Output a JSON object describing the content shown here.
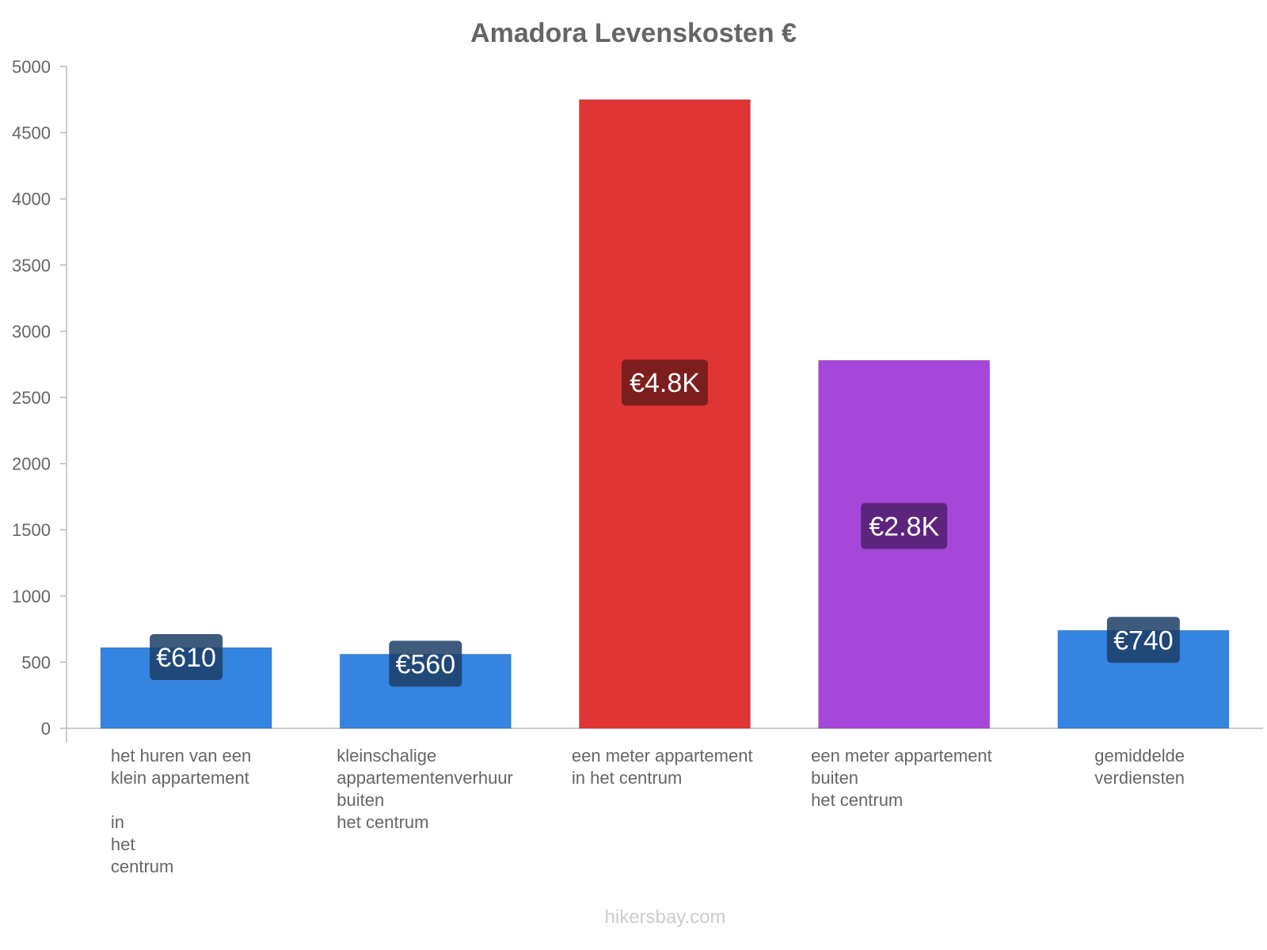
{
  "chart_data": {
    "type": "bar",
    "title": "Amadora Levenskosten €",
    "xlabel": "",
    "ylabel": "",
    "ylim": [
      0,
      5000
    ],
    "yticks": [
      0,
      500,
      1000,
      1500,
      2000,
      2500,
      3000,
      3500,
      4000,
      4500,
      5000
    ],
    "grid": false,
    "legend": "none",
    "categories": [
      [
        "het huren van een",
        "klein appartement",
        "",
        "in",
        "het",
        "centrum"
      ],
      [
        "kleinschalige",
        "appartementenverhuur",
        "buiten",
        "het centrum"
      ],
      [
        "een meter appartement",
        "in het centrum"
      ],
      [
        "een meter appartement",
        "buiten",
        "het centrum"
      ],
      [
        "gemiddelde",
        "verdiensten"
      ]
    ],
    "values": [
      610,
      560,
      4750,
      2780,
      740
    ],
    "value_labels": [
      "€610",
      "€560",
      "€4.8K",
      "€2.8K",
      "€740"
    ],
    "bar_colors": [
      "#3584e0",
      "#3584e0",
      "#e03535",
      "#a647d9",
      "#3584e0"
    ],
    "label_bg_colors": [
      "#1c3d66",
      "#1c3d66",
      "#6b1a1a",
      "#4f1f6b",
      "#1c3d66"
    ]
  },
  "footer": "hikersbay.com"
}
